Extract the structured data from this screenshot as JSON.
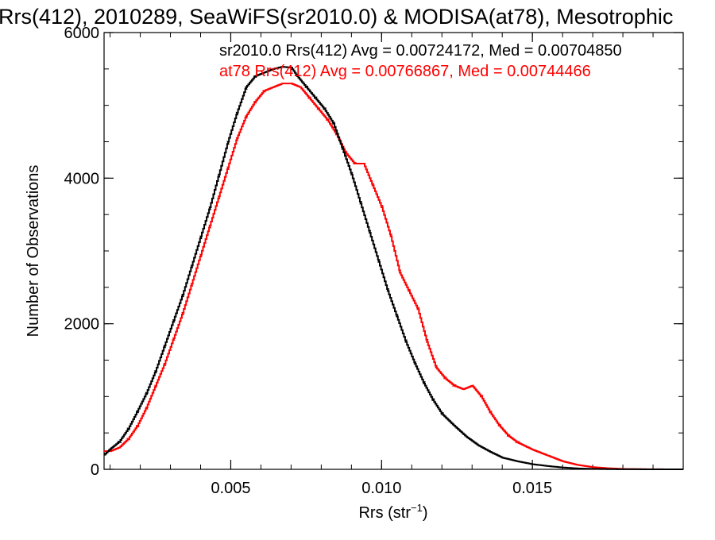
{
  "chart_data": {
    "type": "line",
    "title": "Rrs(412), 2010289, SeaWiFS(sr2010.0) & MODISA(at78), Mesotrophic",
    "xlabel": "Rrs (str",
    "xlabel_superscript": "−1",
    "xlabel_suffix": ")",
    "ylabel": "Number of Observations",
    "xlim": [
      0.0008,
      0.02
    ],
    "ylim": [
      0,
      6000
    ],
    "xticks": [
      0.005,
      0.01,
      0.015
    ],
    "xtick_labels": [
      "0.005",
      "0.010",
      "0.015"
    ],
    "yticks": [
      0,
      2000,
      4000,
      6000
    ],
    "ytick_labels": [
      "0",
      "2000",
      "4000",
      "6000"
    ],
    "grid": false,
    "legend_position": "top-right",
    "series": [
      {
        "name": "sr2010.0",
        "label": "sr2010.0 Rrs(412) Avg = 0.00724172, Med = 0.00704850",
        "color": "#000000",
        "points": [
          [
            0.0008,
            200
          ],
          [
            0.001,
            280
          ],
          [
            0.0013,
            380
          ],
          [
            0.0016,
            560
          ],
          [
            0.0019,
            800
          ],
          [
            0.0022,
            1050
          ],
          [
            0.0025,
            1350
          ],
          [
            0.0028,
            1700
          ],
          [
            0.0031,
            2050
          ],
          [
            0.0034,
            2400
          ],
          [
            0.0037,
            2800
          ],
          [
            0.004,
            3200
          ],
          [
            0.0043,
            3600
          ],
          [
            0.0046,
            4050
          ],
          [
            0.0049,
            4500
          ],
          [
            0.0052,
            4900
          ],
          [
            0.0055,
            5250
          ],
          [
            0.0058,
            5400
          ],
          [
            0.0061,
            5450
          ],
          [
            0.0064,
            5500
          ],
          [
            0.0067,
            5530
          ],
          [
            0.007,
            5520
          ],
          [
            0.0072,
            5400
          ],
          [
            0.0075,
            5250
          ],
          [
            0.0078,
            5100
          ],
          [
            0.0081,
            4950
          ],
          [
            0.0084,
            4750
          ],
          [
            0.0087,
            4400
          ],
          [
            0.009,
            4050
          ],
          [
            0.0093,
            3650
          ],
          [
            0.0096,
            3250
          ],
          [
            0.0099,
            2850
          ],
          [
            0.0102,
            2450
          ],
          [
            0.0105,
            2100
          ],
          [
            0.0108,
            1750
          ],
          [
            0.0111,
            1450
          ],
          [
            0.0114,
            1180
          ],
          [
            0.0117,
            950
          ],
          [
            0.012,
            760
          ],
          [
            0.0124,
            600
          ],
          [
            0.0128,
            450
          ],
          [
            0.0132,
            330
          ],
          [
            0.0136,
            240
          ],
          [
            0.014,
            160
          ],
          [
            0.0145,
            110
          ],
          [
            0.015,
            70
          ],
          [
            0.0155,
            45
          ],
          [
            0.016,
            25
          ],
          [
            0.0165,
            12
          ],
          [
            0.017,
            6
          ],
          [
            0.0175,
            3
          ],
          [
            0.018,
            1
          ],
          [
            0.02,
            0
          ]
        ]
      },
      {
        "name": "at78",
        "label": "at78 Rrs(412) Avg = 0.00766867, Med = 0.00744466",
        "color": "#ff0000",
        "points": [
          [
            0.0008,
            250
          ],
          [
            0.001,
            250
          ],
          [
            0.0013,
            300
          ],
          [
            0.0016,
            420
          ],
          [
            0.0019,
            600
          ],
          [
            0.0022,
            850
          ],
          [
            0.0025,
            1150
          ],
          [
            0.0028,
            1450
          ],
          [
            0.0031,
            1800
          ],
          [
            0.0034,
            2150
          ],
          [
            0.0037,
            2550
          ],
          [
            0.004,
            2950
          ],
          [
            0.0043,
            3350
          ],
          [
            0.0046,
            3750
          ],
          [
            0.0049,
            4150
          ],
          [
            0.0052,
            4550
          ],
          [
            0.0055,
            4850
          ],
          [
            0.0058,
            5050
          ],
          [
            0.0061,
            5200
          ],
          [
            0.0064,
            5250
          ],
          [
            0.0067,
            5300
          ],
          [
            0.007,
            5300
          ],
          [
            0.0073,
            5250
          ],
          [
            0.0076,
            5100
          ],
          [
            0.0079,
            4950
          ],
          [
            0.0082,
            4800
          ],
          [
            0.0085,
            4600
          ],
          [
            0.0088,
            4350
          ],
          [
            0.0091,
            4200
          ],
          [
            0.0094,
            4200
          ],
          [
            0.0097,
            3900
          ],
          [
            0.01,
            3600
          ],
          [
            0.0103,
            3200
          ],
          [
            0.0106,
            2700
          ],
          [
            0.0109,
            2450
          ],
          [
            0.0112,
            2200
          ],
          [
            0.0115,
            1750
          ],
          [
            0.0118,
            1400
          ],
          [
            0.0121,
            1250
          ],
          [
            0.0124,
            1150
          ],
          [
            0.0127,
            1100
          ],
          [
            0.013,
            1150
          ],
          [
            0.0133,
            1000
          ],
          [
            0.0136,
            780
          ],
          [
            0.0139,
            600
          ],
          [
            0.0142,
            460
          ],
          [
            0.0145,
            370
          ],
          [
            0.015,
            270
          ],
          [
            0.0155,
            190
          ],
          [
            0.016,
            110
          ],
          [
            0.0165,
            60
          ],
          [
            0.017,
            30
          ],
          [
            0.0175,
            15
          ],
          [
            0.018,
            5
          ],
          [
            0.019,
            1
          ],
          [
            0.02,
            0
          ]
        ]
      }
    ]
  }
}
